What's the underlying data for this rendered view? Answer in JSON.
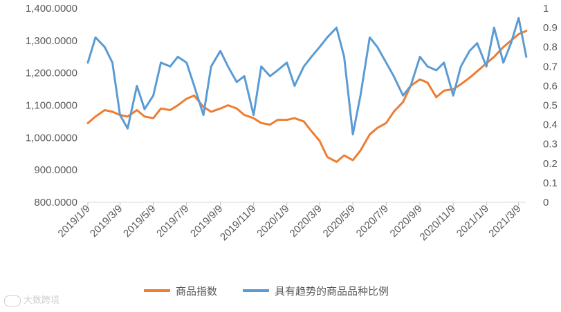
{
  "chart_data": {
    "type": "line",
    "title": "",
    "left_axis": {
      "ylim": [
        800,
        1400
      ],
      "ticks": [
        "800.0000",
        "900.0000",
        "1,000.0000",
        "1,100.0000",
        "1,200.0000",
        "1,300.0000",
        "1,400.0000"
      ]
    },
    "right_axis": {
      "ylim": [
        0,
        1
      ],
      "ticks": [
        "0",
        "0.1",
        "0.2",
        "0.3",
        "0.4",
        "0.5",
        "0.6",
        "0.7",
        "0.8",
        "0.9",
        "1"
      ]
    },
    "x_ticks": [
      "2019/1/9",
      "2019/3/9",
      "2019/5/9",
      "2019/7/9",
      "2019/9/9",
      "2019/11/9",
      "2020/1/9",
      "2020/3/9",
      "2020/5/9",
      "2020/7/9",
      "2020/9/9",
      "2020/11/9",
      "2021/1/9",
      "2021/3/9"
    ],
    "legend_position": "bottom",
    "series": [
      {
        "name": "商品指数",
        "axis": "left",
        "color": "#ED7D31",
        "x": [
          "2019/1/9",
          "2019/1/23",
          "2019/2/9",
          "2019/2/23",
          "2019/3/9",
          "2019/3/23",
          "2019/4/9",
          "2019/4/23",
          "2019/5/9",
          "2019/5/23",
          "2019/6/9",
          "2019/6/23",
          "2019/7/9",
          "2019/7/23",
          "2019/8/9",
          "2019/8/23",
          "2019/9/9",
          "2019/9/23",
          "2019/10/9",
          "2019/10/23",
          "2019/11/9",
          "2019/11/23",
          "2019/12/9",
          "2019/12/23",
          "2020/1/9",
          "2020/1/23",
          "2020/2/9",
          "2020/2/23",
          "2020/3/9",
          "2020/3/23",
          "2020/4/9",
          "2020/4/23",
          "2020/5/9",
          "2020/5/23",
          "2020/6/9",
          "2020/6/23",
          "2020/7/9",
          "2020/7/23",
          "2020/8/9",
          "2020/8/23",
          "2020/9/9",
          "2020/9/23",
          "2020/10/9",
          "2020/10/23",
          "2020/11/9",
          "2020/11/23",
          "2020/12/9",
          "2020/12/23",
          "2021/1/9",
          "2021/1/23",
          "2021/2/9",
          "2021/2/23",
          "2021/3/9",
          "2021/3/23"
        ],
        "values": [
          1045,
          1065,
          1085,
          1080,
          1070,
          1065,
          1085,
          1065,
          1060,
          1090,
          1085,
          1100,
          1120,
          1130,
          1095,
          1080,
          1090,
          1100,
          1090,
          1070,
          1060,
          1045,
          1040,
          1055,
          1055,
          1060,
          1050,
          1020,
          990,
          940,
          925,
          945,
          930,
          960,
          1010,
          1030,
          1045,
          1080,
          1110,
          1160,
          1180,
          1170,
          1125,
          1145,
          1150,
          1165,
          1185,
          1205,
          1230,
          1250,
          1280,
          1300,
          1320,
          1330
        ]
      },
      {
        "name": "具有趋势的商品品种比例",
        "axis": "right",
        "color": "#5B9BD5",
        "x": [
          "2019/1/9",
          "2019/1/23",
          "2019/2/9",
          "2019/2/23",
          "2019/3/9",
          "2019/3/23",
          "2019/4/9",
          "2019/4/23",
          "2019/5/9",
          "2019/5/23",
          "2019/6/9",
          "2019/6/23",
          "2019/7/9",
          "2019/7/23",
          "2019/8/9",
          "2019/8/23",
          "2019/9/9",
          "2019/9/23",
          "2019/10/9",
          "2019/10/23",
          "2019/11/9",
          "2019/11/23",
          "2019/12/9",
          "2019/12/23",
          "2020/1/9",
          "2020/1/23",
          "2020/2/9",
          "2020/2/23",
          "2020/3/9",
          "2020/3/23",
          "2020/4/9",
          "2020/4/23",
          "2020/5/9",
          "2020/5/23",
          "2020/6/9",
          "2020/6/23",
          "2020/7/9",
          "2020/7/23",
          "2020/8/9",
          "2020/8/23",
          "2020/9/9",
          "2020/9/23",
          "2020/10/9",
          "2020/10/23",
          "2020/11/9",
          "2020/11/23",
          "2020/12/9",
          "2020/12/23",
          "2021/1/9",
          "2021/1/23",
          "2021/2/9",
          "2021/2/23",
          "2021/3/9",
          "2021/3/23"
        ],
        "values": [
          0.72,
          0.85,
          0.8,
          0.72,
          0.45,
          0.38,
          0.6,
          0.48,
          0.55,
          0.72,
          0.7,
          0.75,
          0.72,
          0.6,
          0.45,
          0.7,
          0.78,
          0.7,
          0.62,
          0.65,
          0.45,
          0.7,
          0.65,
          0.68,
          0.72,
          0.6,
          0.7,
          0.75,
          0.8,
          0.85,
          0.9,
          0.75,
          0.35,
          0.55,
          0.85,
          0.8,
          0.72,
          0.65,
          0.55,
          0.6,
          0.75,
          0.7,
          0.68,
          0.72,
          0.55,
          0.7,
          0.78,
          0.82,
          0.7,
          0.9,
          0.72,
          0.82,
          0.95,
          0.75
        ]
      }
    ]
  },
  "watermark": {
    "text": "大数跨境"
  }
}
